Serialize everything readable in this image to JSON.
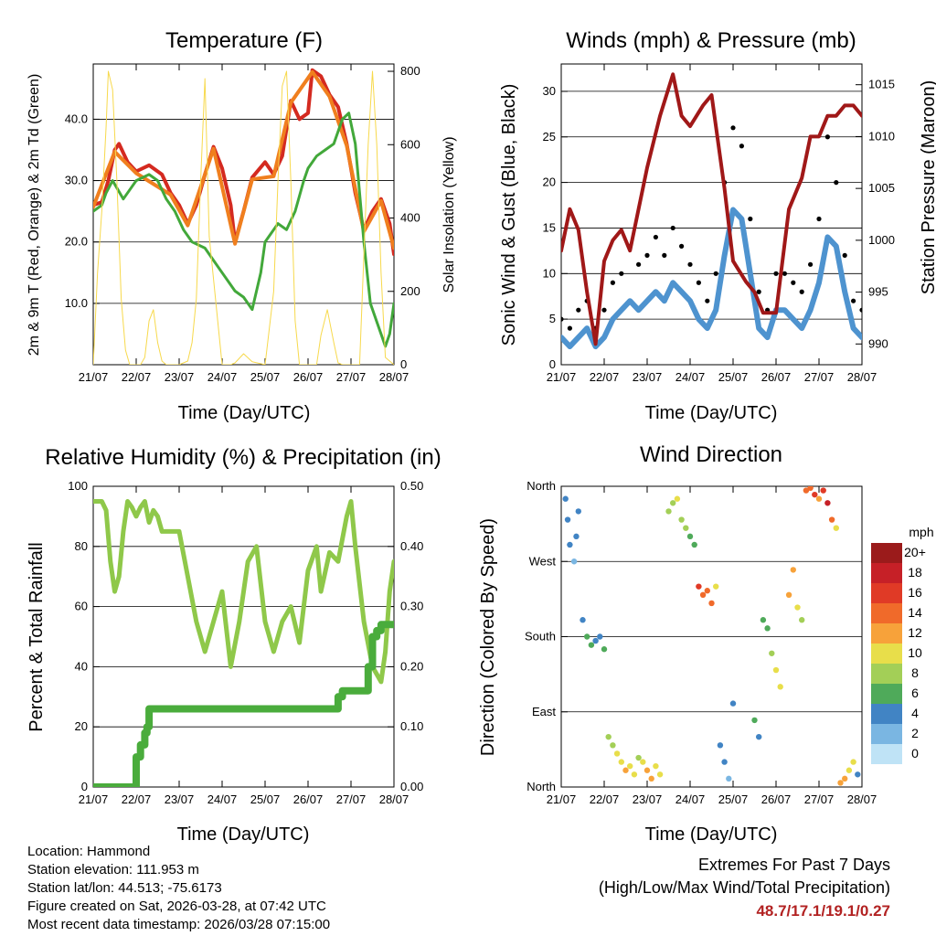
{
  "chart_data": [
    {
      "id": "temperature",
      "type": "line",
      "title": "Temperature (F)",
      "xlabel": "Time (Day/UTC)",
      "ylabel": "2m & 9m T (Red, Orange) & 2m Td (Green)",
      "y2label": "Solar Insolation (Yellow)",
      "x_ticks": [
        "21/07",
        "22/07",
        "23/07",
        "24/07",
        "25/07",
        "26/07",
        "27/07",
        "28/07"
      ],
      "xlim": [
        0,
        7
      ],
      "ylim": [
        0,
        49
      ],
      "y_ticks": [
        "10.0",
        "20.0",
        "30.0",
        "40.0"
      ],
      "y_tick_values": [
        10,
        20,
        30,
        40
      ],
      "y2lim": [
        0,
        820
      ],
      "y2_ticks": [
        "0",
        "200",
        "400",
        "600",
        "800"
      ],
      "y2_tick_values": [
        0,
        200,
        400,
        600,
        800
      ],
      "series": [
        {
          "name": "2m T",
          "color": "#d42a20",
          "x": [
            0,
            0.2,
            0.35,
            0.5,
            0.6,
            0.8,
            1.0,
            1.3,
            1.6,
            1.8,
            2.0,
            2.2,
            2.4,
            2.6,
            2.8,
            3.0,
            3.2,
            3.3,
            3.5,
            3.7,
            4.0,
            4.2,
            4.4,
            4.6,
            4.8,
            5.0,
            5.1,
            5.3,
            5.5,
            5.7,
            5.9,
            6.1,
            6.3,
            6.5,
            6.7,
            6.9,
            7.0
          ],
          "values": [
            26,
            26.5,
            30,
            35,
            36,
            33,
            31.5,
            32.5,
            31,
            28,
            26,
            23,
            26,
            31,
            35.5,
            32,
            26,
            20,
            25,
            30.5,
            33,
            31,
            34,
            43,
            40,
            41,
            48,
            47,
            44,
            42,
            36,
            28,
            22,
            25,
            27,
            23,
            18
          ]
        },
        {
          "name": "9m T",
          "color": "#f07f1e",
          "x": [
            0,
            0.5,
            1.0,
            1.8,
            2.2,
            2.8,
            3.3,
            3.7,
            4.2,
            4.6,
            5.1,
            5.5,
            5.9,
            6.3,
            6.7,
            7.0
          ],
          "values": [
            25.7,
            34.7,
            31.2,
            27.7,
            22.7,
            35.2,
            19.7,
            30.2,
            30.7,
            42.7,
            47.7,
            43.7,
            35.7,
            21.7,
            26.7,
            19.0
          ]
        },
        {
          "name": "2m Td",
          "color": "#42a83a",
          "x": [
            0,
            0.2,
            0.3,
            0.45,
            0.7,
            0.9,
            1.0,
            1.3,
            1.5,
            1.7,
            1.9,
            2.1,
            2.3,
            2.6,
            2.8,
            3.0,
            3.3,
            3.5,
            3.7,
            3.9,
            4.0,
            4.1,
            4.2,
            4.3,
            4.5,
            4.7,
            4.9,
            5.0,
            5.2,
            5.4,
            5.6,
            5.8,
            5.95,
            6.1,
            6.3,
            6.45,
            6.6,
            6.8,
            6.9,
            7.0
          ],
          "values": [
            25,
            26,
            28,
            30,
            27,
            29,
            30,
            31,
            30,
            27,
            25,
            22,
            20,
            19,
            17,
            15,
            12,
            11,
            9,
            15,
            20,
            21,
            22,
            23,
            22,
            25,
            30,
            32,
            34,
            35,
            36,
            40,
            41,
            36,
            20,
            10,
            7,
            3,
            5,
            10
          ]
        },
        {
          "name": "Solar Insolation",
          "color": "#f7d94c",
          "axis": "y2",
          "x": [
            0,
            0.1,
            0.2,
            0.3,
            0.35,
            0.45,
            0.55,
            0.65,
            0.75,
            0.85,
            1.0,
            1.1,
            1.2,
            1.3,
            1.4,
            1.5,
            1.6,
            1.7,
            2.0,
            2.2,
            2.3,
            2.4,
            2.5,
            2.6,
            2.7,
            3.0,
            3.2,
            3.3,
            3.5,
            3.7,
            4.0,
            4.2,
            4.3,
            4.4,
            4.5,
            4.6,
            4.7,
            4.8,
            5.0,
            5.2,
            5.3,
            5.45,
            5.6,
            5.7,
            5.8,
            6.0,
            6.2,
            6.3,
            6.4,
            6.5,
            6.6,
            6.7,
            6.8,
            7.0
          ],
          "values": [
            0,
            250,
            420,
            650,
            800,
            750,
            500,
            180,
            40,
            0,
            0,
            0,
            20,
            120,
            150,
            60,
            10,
            0,
            0,
            10,
            60,
            180,
            500,
            780,
            350,
            0,
            0,
            5,
            30,
            8,
            0,
            200,
            500,
            760,
            800,
            500,
            120,
            0,
            0,
            0,
            80,
            150,
            60,
            5,
            0,
            0,
            0,
            300,
            600,
            800,
            600,
            250,
            20,
            0
          ]
        }
      ]
    },
    {
      "id": "winds",
      "type": "scatter",
      "title": "Winds (mph) & Pressure (mb)",
      "xlabel": "Time (Day/UTC)",
      "ylabel": "Sonic Wind & Gust (Blue, Black)",
      "y2label": "Station Pressure (Maroon)",
      "x_ticks": [
        "21/07",
        "22/07",
        "23/07",
        "24/07",
        "25/07",
        "26/07",
        "27/07",
        "28/07"
      ],
      "xlim": [
        0,
        7
      ],
      "ylim": [
        0,
        33
      ],
      "y_ticks": [
        "0",
        "5",
        "10",
        "15",
        "20",
        "25",
        "30"
      ],
      "y_tick_values": [
        0,
        5,
        10,
        15,
        20,
        25,
        30
      ],
      "y2lim": [
        988,
        1017
      ],
      "y2_ticks": [
        "990",
        "995",
        "1000",
        "1005",
        "1010",
        "1015"
      ],
      "y2_tick_values": [
        990,
        995,
        1000,
        1005,
        1010,
        1015
      ],
      "series": [
        {
          "name": "Sonic Wind",
          "color": "#4e93cf",
          "x": [
            0,
            0.2,
            0.4,
            0.6,
            0.8,
            1.0,
            1.2,
            1.4,
            1.6,
            1.8,
            2.0,
            2.2,
            2.4,
            2.6,
            2.8,
            3.0,
            3.2,
            3.4,
            3.6,
            3.8,
            4.0,
            4.2,
            4.4,
            4.6,
            4.8,
            5.0,
            5.2,
            5.4,
            5.6,
            5.8,
            6.0,
            6.2,
            6.4,
            6.6,
            6.8,
            7.0
          ],
          "values": [
            3,
            2,
            3,
            4,
            2,
            3,
            5,
            6,
            7,
            6,
            7,
            8,
            7,
            9,
            8,
            7,
            5,
            4,
            6,
            12,
            17,
            16,
            10,
            4,
            3,
            6,
            6,
            5,
            4,
            6,
            9,
            14,
            13,
            8,
            4,
            3
          ]
        },
        {
          "name": "Gust",
          "color": "#000000",
          "x": [
            0,
            0.2,
            0.4,
            0.6,
            0.8,
            1.0,
            1.2,
            1.4,
            1.6,
            1.8,
            2.0,
            2.2,
            2.4,
            2.6,
            2.8,
            3.0,
            3.2,
            3.4,
            3.6,
            3.8,
            4.0,
            4.2,
            4.4,
            4.6,
            4.8,
            5.0,
            5.2,
            5.4,
            5.6,
            5.8,
            6.0,
            6.2,
            6.4,
            6.6,
            6.8,
            7.0
          ],
          "values": [
            5,
            4,
            6,
            7,
            4,
            6,
            9,
            10,
            13,
            11,
            12,
            14,
            12,
            15,
            13,
            11,
            9,
            7,
            10,
            20,
            26,
            24,
            16,
            8,
            6,
            10,
            10,
            9,
            8,
            11,
            16,
            25,
            20,
            12,
            7,
            6
          ]
        },
        {
          "name": "Station Pressure",
          "color": "#a01818",
          "axis": "y2",
          "x": [
            0,
            0.2,
            0.4,
            0.6,
            0.8,
            1.0,
            1.2,
            1.4,
            1.6,
            1.8,
            2.0,
            2.3,
            2.6,
            2.8,
            3.0,
            3.3,
            3.5,
            3.8,
            4.0,
            4.3,
            4.5,
            4.7,
            5.0,
            5.3,
            5.6,
            5.8,
            6.0,
            6.2,
            6.4,
            6.6,
            6.8,
            7.0
          ],
          "values": [
            999,
            1003,
            1001,
            995,
            990,
            998,
            1000,
            1001,
            999,
            1003,
            1007,
            1012,
            1016,
            1012,
            1011,
            1013,
            1014,
            1005,
            998,
            996,
            995,
            993,
            993,
            1003,
            1006,
            1010,
            1010,
            1012,
            1012,
            1013,
            1013,
            1012
          ]
        }
      ]
    },
    {
      "id": "rh_precip",
      "type": "line",
      "title": "Relative Humidity (%) & Precipitation (in)",
      "xlabel": "Time (Day/UTC)",
      "ylabel": "Percent & Total Rainfall",
      "x_ticks": [
        "21/07",
        "22/07",
        "23/07",
        "24/07",
        "25/07",
        "26/07",
        "27/07",
        "28/07"
      ],
      "xlim": [
        0,
        7
      ],
      "ylim": [
        0,
        100
      ],
      "y_ticks": [
        "0",
        "20",
        "40",
        "60",
        "80",
        "100"
      ],
      "y_tick_values": [
        0,
        20,
        40,
        60,
        80,
        100
      ],
      "y2lim": [
        0,
        0.5
      ],
      "y2_ticks": [
        "0.00",
        "0.10",
        "0.20",
        "0.30",
        "0.40",
        "0.50"
      ],
      "y2_tick_values": [
        0,
        0.1,
        0.2,
        0.3,
        0.4,
        0.5
      ],
      "series": [
        {
          "name": "Relative Humidity",
          "color": "#8fc84a",
          "x": [
            0,
            0.1,
            0.2,
            0.3,
            0.4,
            0.5,
            0.6,
            0.7,
            0.8,
            0.9,
            1.0,
            1.1,
            1.2,
            1.3,
            1.4,
            1.5,
            1.6,
            1.8,
            2.0,
            2.2,
            2.4,
            2.6,
            2.8,
            3.0,
            3.2,
            3.4,
            3.6,
            3.8,
            4.0,
            4.2,
            4.4,
            4.6,
            4.8,
            5.0,
            5.2,
            5.3,
            5.5,
            5.7,
            5.9,
            6.0,
            6.1,
            6.3,
            6.5,
            6.7,
            6.8,
            6.9,
            7.0
          ],
          "values": [
            95,
            95,
            95,
            92,
            75,
            65,
            70,
            85,
            95,
            93,
            90,
            93,
            95,
            88,
            92,
            90,
            85,
            85,
            85,
            70,
            55,
            45,
            55,
            65,
            40,
            55,
            75,
            80,
            55,
            45,
            55,
            60,
            48,
            72,
            80,
            65,
            78,
            75,
            90,
            95,
            80,
            55,
            40,
            35,
            45,
            65,
            75
          ]
        },
        {
          "name": "Total Precipitation",
          "color": "#4aac3c",
          "axis": "y2",
          "x": [
            0,
            0.9,
            1.0,
            1.1,
            1.15,
            1.2,
            1.25,
            1.3,
            1.4,
            5.6,
            5.7,
            5.8,
            6.3,
            6.4,
            6.5,
            6.6,
            6.7,
            7.0
          ],
          "values": [
            0.0,
            0.0,
            0.05,
            0.07,
            0.07,
            0.09,
            0.1,
            0.13,
            0.13,
            0.13,
            0.15,
            0.16,
            0.16,
            0.2,
            0.25,
            0.26,
            0.27,
            0.27
          ]
        }
      ]
    },
    {
      "id": "wind_direction",
      "type": "scatter",
      "title": "Wind Direction",
      "xlabel": "Time (Day/UTC)",
      "ylabel": "Direction (Colored By Speed)",
      "x_ticks": [
        "21/07",
        "22/07",
        "23/07",
        "24/07",
        "25/07",
        "26/07",
        "27/07",
        "28/07"
      ],
      "xlim": [
        0,
        7
      ],
      "ylim": [
        0,
        360
      ],
      "y_ticks": [
        "North",
        "East",
        "South",
        "West",
        "North"
      ],
      "y_tick_values": [
        0,
        90,
        180,
        270,
        360
      ],
      "colorbar": {
        "title": "mph",
        "labels": [
          "20+",
          "18",
          "16",
          "14",
          "12",
          "10",
          "8",
          "6",
          "4",
          "2",
          "0"
        ],
        "colors": [
          "#9b1b1b",
          "#c62027",
          "#e03a26",
          "#f06a2a",
          "#f7a23a",
          "#e8de4a",
          "#a3cf57",
          "#4faa5a",
          "#4184c4",
          "#7ab6e2",
          "#bfe3f6"
        ]
      },
      "series": [
        {
          "name": "Direction",
          "x": [
            0.1,
            0.15,
            0.2,
            0.3,
            0.35,
            0.4,
            0.5,
            0.6,
            0.7,
            0.8,
            0.9,
            1.0,
            1.1,
            1.2,
            1.3,
            1.4,
            1.5,
            1.6,
            1.7,
            1.8,
            1.9,
            2.0,
            2.1,
            2.2,
            2.3,
            2.5,
            2.6,
            2.7,
            2.8,
            2.9,
            3.0,
            3.1,
            3.2,
            3.3,
            3.4,
            3.5,
            3.6,
            3.7,
            3.8,
            3.9,
            4.0,
            4.5,
            4.6,
            4.7,
            4.8,
            4.9,
            5.0,
            5.1,
            5.3,
            5.4,
            5.5,
            5.6,
            5.7,
            5.8,
            5.9,
            6.0,
            6.1,
            6.2,
            6.3,
            6.4,
            6.5,
            6.6,
            6.7,
            6.8,
            6.9
          ],
          "values": [
            345,
            320,
            290,
            270,
            300,
            330,
            200,
            180,
            170,
            175,
            180,
            165,
            60,
            50,
            40,
            30,
            20,
            25,
            15,
            35,
            30,
            20,
            10,
            25,
            15,
            330,
            340,
            345,
            320,
            310,
            300,
            290,
            240,
            230,
            235,
            220,
            240,
            50,
            30,
            10,
            100,
            80,
            60,
            200,
            190,
            160,
            140,
            120,
            230,
            260,
            215,
            200,
            355,
            358,
            350,
            345,
            355,
            340,
            320,
            310,
            5,
            10,
            20,
            30,
            15
          ],
          "speeds": [
            3,
            4,
            3,
            2,
            3,
            4,
            4,
            5,
            5,
            4,
            3,
            6,
            7,
            8,
            9,
            10,
            11,
            9,
            10,
            8,
            10,
            11,
            12,
            9,
            10,
            7,
            8,
            9,
            8,
            7,
            6,
            5,
            15,
            14,
            13,
            14,
            9,
            4,
            3,
            2,
            4,
            5,
            4,
            5,
            6,
            7,
            9,
            10,
            11,
            12,
            9,
            8,
            13,
            14,
            15,
            12,
            16,
            17,
            14,
            10,
            12,
            11,
            10,
            9,
            3
          ]
        }
      ]
    }
  ],
  "info": {
    "location": "Location: Hammond",
    "elevation": "Station elevation: 111.953 m",
    "latlon": "Station lat/lon: 44.513; -75.6173",
    "created": "Figure created on Sat, 2026-03-28, at 07:42 UTC",
    "recent": "Most recent data timestamp: 2026/03/28 07:15:00"
  },
  "extremes": {
    "title": "Extremes For Past 7 Days",
    "subtitle": "(High/Low/Max Wind/Total Precipitation)",
    "values": "48.7/17.1/19.1/0.27"
  }
}
